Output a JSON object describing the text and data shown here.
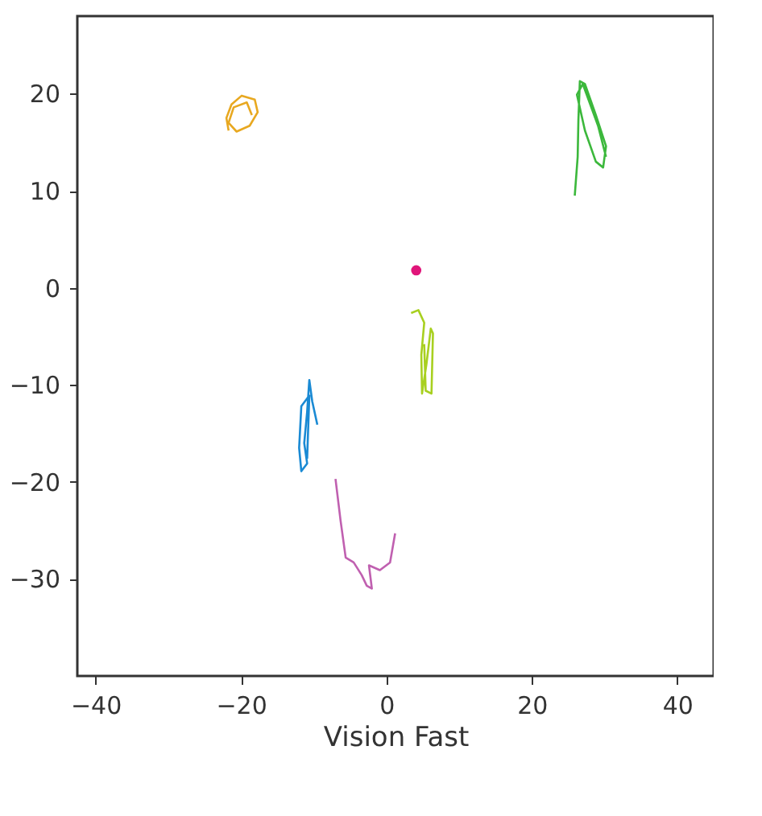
{
  "chart_data": {
    "type": "line",
    "xlabel": "Vision Fast",
    "xlim": [
      -42.5,
      45
    ],
    "ylim": [
      -40,
      28
    ],
    "xticks": [
      -40,
      -20,
      0,
      20,
      40
    ],
    "yticks": [
      -30,
      -20,
      -10,
      0,
      10,
      20
    ],
    "grid": false,
    "line_style": "solid",
    "marker": "none",
    "series": [
      {
        "color": "#e8a820",
        "x": [
          -21.7,
          -22.0,
          -21.3,
          -19.9,
          -18.1,
          -17.7,
          -18.8,
          -20.6,
          -21.7,
          -21.0,
          -19.2,
          -18.5
        ],
        "values": [
          16.2,
          17.5,
          18.9,
          19.8,
          19.4,
          18.1,
          16.7,
          16.1,
          17.0,
          18.6,
          19.1,
          17.8
        ]
      },
      {
        "color": "#3cb83c",
        "x": [
          25.9,
          26.3,
          26.4,
          26.6,
          27.3,
          28.8,
          30.2,
          29.8,
          28.8,
          27.3,
          26.2,
          27.0,
          29.1,
          30.2
        ],
        "values": [
          9.5,
          13.5,
          17.3,
          21.3,
          21.0,
          17.8,
          14.6,
          12.4,
          13.0,
          16.2,
          19.9,
          21.0,
          16.7,
          13.5
        ]
      },
      {
        "type": "scatter",
        "marker": "circle",
        "color": "#e0157a",
        "x": [
          4.1
        ],
        "values": [
          1.8
        ]
      },
      {
        "color": "#a8d020",
        "x": [
          3.4,
          4.4,
          5.2,
          4.8,
          4.9,
          5.5,
          6.1,
          6.4,
          6.2,
          5.4,
          5.2
        ],
        "values": [
          -2.6,
          -2.3,
          -3.6,
          -6.9,
          -10.9,
          -7.9,
          -4.2,
          -4.7,
          -10.9,
          -10.6,
          -5.8
        ]
      },
      {
        "color": "#1a8ad4",
        "x": [
          -9.5,
          -10.2,
          -10.6,
          -10.9,
          -11.3,
          -10.9,
          -11.7,
          -12.0,
          -11.7,
          -10.6,
          -10.9
        ],
        "values": [
          -14.1,
          -11.7,
          -9.5,
          -12.8,
          -16.0,
          -18.1,
          -18.9,
          -16.5,
          -12.2,
          -11.1,
          -17.6
        ]
      },
      {
        "color": "#c060b0",
        "x": [
          -7.0,
          -6.3,
          -5.6,
          -4.5,
          -3.4,
          -2.7,
          -2.0,
          -2.4,
          -0.9,
          0.5,
          1.2
        ],
        "values": [
          -19.7,
          -24.0,
          -27.8,
          -28.3,
          -29.6,
          -30.7,
          -31.0,
          -28.6,
          -29.1,
          -28.3,
          -25.3
        ]
      }
    ]
  }
}
